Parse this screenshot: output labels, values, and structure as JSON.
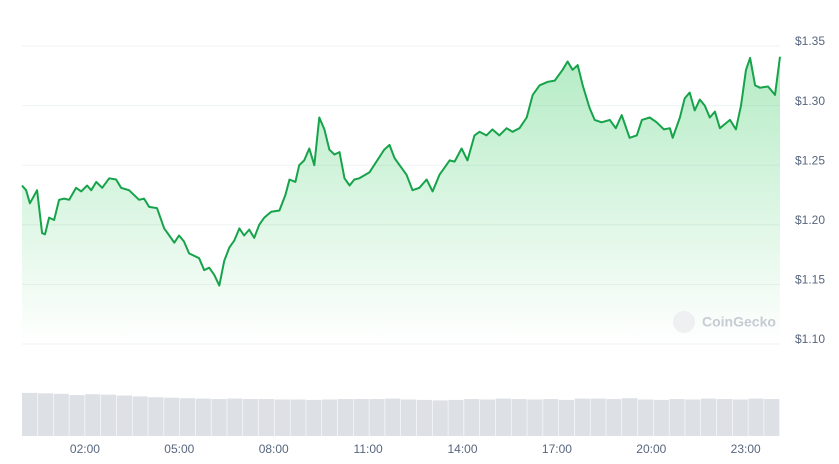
{
  "chart_data": [
    {
      "type": "line",
      "color": "#16a34a",
      "x": [
        0,
        0.13,
        0.25,
        0.48,
        0.64,
        0.73,
        0.86,
        1.02,
        1.18,
        1.34,
        1.5,
        1.72,
        1.88,
        2.07,
        2.2,
        2.36,
        2.55,
        2.77,
        2.99,
        3.15,
        3.4,
        3.72,
        3.88,
        4.04,
        4.29,
        4.52,
        4.68,
        4.84,
        4.99,
        5.15,
        5.31,
        5.63,
        5.79,
        5.95,
        6.11,
        6.27,
        6.43,
        6.59,
        6.75,
        6.91,
        7.06,
        7.22,
        7.38,
        7.54,
        7.7,
        7.92,
        8.18,
        8.37,
        8.5,
        8.69,
        8.81,
        8.97,
        9.13,
        9.29,
        9.45,
        9.61,
        9.77,
        9.93,
        10.09,
        10.25,
        10.41,
        10.56,
        10.72,
        11.04,
        11.29,
        11.51,
        11.68,
        11.84,
        12,
        12.22,
        12.41,
        12.63,
        12.86,
        13.05,
        13.27,
        13.43,
        13.59,
        13.75,
        13.97,
        14.16,
        14.38,
        14.54,
        14.76,
        14.95,
        15.17,
        15.4,
        15.59,
        15.81,
        16.04,
        16.23,
        16.45,
        16.71,
        16.93,
        17.18,
        17.34,
        17.5,
        17.66,
        17.82,
        18.04,
        18.2,
        18.42,
        18.68,
        18.87,
        19.06,
        19.31,
        19.54,
        19.7,
        19.95,
        20.17,
        20.4,
        20.59,
        20.68,
        20.91,
        21.06,
        21.22,
        21.38,
        21.54,
        21.7,
        21.86,
        22.02,
        22.18,
        22.5,
        22.69,
        22.85,
        23.01,
        23.14,
        23.3,
        23.45,
        23.71,
        23.93,
        24.09
      ],
      "values": [
        1.233,
        1.229,
        1.218,
        1.229,
        1.193,
        1.192,
        1.206,
        1.204,
        1.221,
        1.222,
        1.221,
        1.231,
        1.228,
        1.233,
        1.229,
        1.236,
        1.231,
        1.239,
        1.238,
        1.231,
        1.229,
        1.221,
        1.222,
        1.215,
        1.214,
        1.197,
        1.191,
        1.185,
        1.191,
        1.186,
        1.176,
        1.172,
        1.162,
        1.164,
        1.158,
        1.149,
        1.17,
        1.181,
        1.187,
        1.197,
        1.191,
        1.196,
        1.189,
        1.2,
        1.206,
        1.211,
        1.212,
        1.225,
        1.238,
        1.236,
        1.25,
        1.254,
        1.264,
        1.25,
        1.29,
        1.28,
        1.263,
        1.259,
        1.261,
        1.239,
        1.233,
        1.238,
        1.239,
        1.244,
        1.254,
        1.263,
        1.267,
        1.256,
        1.25,
        1.242,
        1.229,
        1.231,
        1.238,
        1.228,
        1.242,
        1.248,
        1.254,
        1.253,
        1.264,
        1.254,
        1.275,
        1.278,
        1.275,
        1.28,
        1.275,
        1.281,
        1.278,
        1.281,
        1.29,
        1.309,
        1.317,
        1.32,
        1.321,
        1.33,
        1.337,
        1.33,
        1.334,
        1.317,
        1.298,
        1.288,
        1.286,
        1.288,
        1.281,
        1.292,
        1.273,
        1.275,
        1.288,
        1.29,
        1.286,
        1.28,
        1.281,
        1.273,
        1.29,
        1.306,
        1.311,
        1.296,
        1.305,
        1.3,
        1.29,
        1.295,
        1.281,
        1.288,
        1.28,
        1.3,
        1.33,
        1.34,
        1.317,
        1.315,
        1.316,
        1.309,
        1.341
      ],
      "xlim": [
        0,
        24.09
      ],
      "ylim": [
        1.1,
        1.35
      ],
      "yticks": [
        {
          "value": 1.1,
          "label": "$1.10"
        },
        {
          "value": 1.15,
          "label": "$1.15"
        },
        {
          "value": 1.2,
          "label": "$1.20"
        },
        {
          "value": 1.25,
          "label": "$1.25"
        },
        {
          "value": 1.3,
          "label": "$1.30"
        },
        {
          "value": 1.35,
          "label": "$1.35"
        }
      ],
      "xticks": [
        {
          "value": 2,
          "label": "02:00"
        },
        {
          "value": 5,
          "label": "05:00"
        },
        {
          "value": 8,
          "label": "08:00"
        },
        {
          "value": 11,
          "label": "11:00"
        },
        {
          "value": 14,
          "label": "14:00"
        },
        {
          "value": 17,
          "label": "17:00"
        },
        {
          "value": 20,
          "label": "20:00"
        },
        {
          "value": 23,
          "label": "23:00"
        }
      ],
      "grid": true,
      "watermark": "CoinGecko"
    },
    {
      "type": "bar",
      "color": "#dde0e5",
      "ylim": [
        0,
        1
      ],
      "values": [
        0.98,
        0.97,
        0.96,
        0.93,
        0.95,
        0.94,
        0.92,
        0.9,
        0.88,
        0.87,
        0.86,
        0.85,
        0.84,
        0.85,
        0.84,
        0.84,
        0.83,
        0.83,
        0.82,
        0.83,
        0.84,
        0.84,
        0.84,
        0.85,
        0.83,
        0.82,
        0.81,
        0.82,
        0.84,
        0.83,
        0.85,
        0.84,
        0.83,
        0.84,
        0.82,
        0.85,
        0.85,
        0.84,
        0.86,
        0.83,
        0.82,
        0.84,
        0.83,
        0.85,
        0.84,
        0.83,
        0.85,
        0.84
      ]
    }
  ]
}
